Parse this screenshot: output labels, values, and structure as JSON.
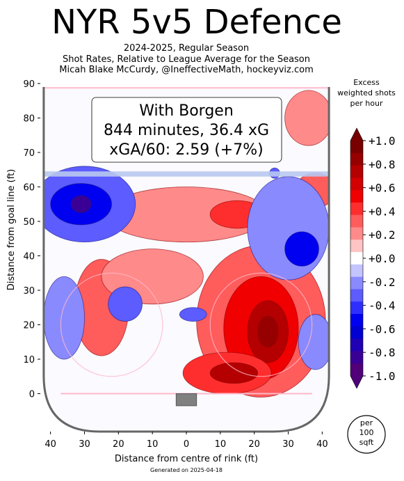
{
  "header": {
    "title": "NYR 5v5 Defence",
    "subtitle_lines": [
      "2024-2025, Regular Season",
      "Shot Rates, Relative to League Average for the Season",
      "Micah Blake McCurdy, @IneffectiveMath, hockeyviz.com"
    ]
  },
  "infobox": {
    "lines": [
      "With Borgen",
      "844 minutes, 36.4 xG",
      "xGA/60: 2.59 (+7%)"
    ]
  },
  "footer": {
    "generated": "Generated on 2025-04-18"
  },
  "scale_badge": {
    "lines": [
      "per",
      "100",
      "sqft"
    ]
  },
  "colors": {
    "red_dark": "#e60000",
    "red_mid": "#ff8f8f",
    "red_light": "#ffc8c8",
    "blue_dark": "#0000e6",
    "blue_mid": "#8f8fff",
    "blue_light": "#c8c8ff",
    "rink_line": "#ffb8c8",
    "blue_line": "#b8c8f0",
    "board": "#666666",
    "net": "#808080"
  },
  "chart_data": {
    "type": "heatmap",
    "xlabel": "Distance from centre of rink (ft)",
    "ylabel": "Distance from goal line (ft)",
    "xlim": [
      -43,
      43
    ],
    "ylim": [
      -11,
      90
    ],
    "x_ticks": [
      -40,
      -30,
      -20,
      -10,
      0,
      10,
      20,
      30,
      40
    ],
    "x_tick_labels": [
      "40",
      "30",
      "20",
      "10",
      "0",
      "10",
      "20",
      "30",
      "40"
    ],
    "y_ticks": [
      0,
      10,
      20,
      30,
      40,
      50,
      60,
      70,
      80,
      90
    ],
    "y_tick_labels": [
      "0",
      "10",
      "20",
      "30",
      "40",
      "50",
      "60",
      "70",
      "80",
      "90"
    ],
    "colorbar": {
      "title_lines": [
        "Excess",
        "weighted shots",
        "per hour"
      ],
      "ticks": [
        1.0,
        0.8,
        0.6,
        0.4,
        0.2,
        0.0,
        -0.2,
        -0.4,
        -0.6,
        -0.8,
        -1.0
      ],
      "tick_labels": [
        "+1.0",
        "+0.8",
        "+0.6",
        "+0.4",
        "+0.2",
        "+0.0",
        "-0.2",
        "-0.4",
        "-0.6",
        "-0.8",
        "-1.0"
      ],
      "levels": [
        0.9,
        0.8,
        0.7,
        0.6,
        0.5,
        0.4,
        0.3,
        0.2,
        0.1,
        -0.1,
        -0.2,
        -0.3,
        -0.4,
        -0.5,
        -0.6,
        -0.7,
        -0.8,
        -0.9
      ],
      "colors": [
        "#780000",
        "#960000",
        "#b40000",
        "#d20000",
        "#f00000",
        "#ff2e2e",
        "#ff5c5c",
        "#ff8a8a",
        "#ffc4c4",
        "#ffffff",
        "#c4c4ff",
        "#8a8aff",
        "#5c5cff",
        "#2e2eff",
        "#0000f0",
        "#0000d2",
        "#2000b4",
        "#3a0096",
        "#500078"
      ]
    },
    "rink": {
      "goal_line_y": 0,
      "blue_line_y": 64,
      "faceoff_circles": [
        {
          "x": -22,
          "y": 20,
          "r": 15
        },
        {
          "x": 22,
          "y": 20,
          "r": 15
        }
      ]
    },
    "regions": [
      {
        "x": 22,
        "y": 21,
        "rx": 19,
        "ry": 22,
        "value": 0.3
      },
      {
        "x": 22,
        "y": 19,
        "rx": 11,
        "ry": 15,
        "value": 0.5
      },
      {
        "x": 24,
        "y": 18,
        "rx": 6,
        "ry": 9,
        "value": 0.7
      },
      {
        "x": 24,
        "y": 18,
        "rx": 3,
        "ry": 4.5,
        "value": 0.8
      },
      {
        "x": 12,
        "y": 6,
        "rx": 13,
        "ry": 6,
        "value": 0.4
      },
      {
        "x": 14,
        "y": 6,
        "rx": 7,
        "ry": 3,
        "value": 0.7
      },
      {
        "x": -25,
        "y": 25,
        "rx": 8,
        "ry": 14,
        "value": 0.3
      },
      {
        "x": -10,
        "y": 34,
        "rx": 15,
        "ry": 8,
        "value": 0.2
      },
      {
        "x": 0,
        "y": 52,
        "rx": 24,
        "ry": 8,
        "value": 0.2
      },
      {
        "x": 15,
        "y": 52,
        "rx": 8,
        "ry": 4,
        "value": 0.4
      },
      {
        "x": 36,
        "y": 80,
        "rx": 7,
        "ry": 8,
        "value": 0.2
      },
      {
        "x": 38,
        "y": 59,
        "rx": 6,
        "ry": 5,
        "value": 0.3
      },
      {
        "x": -30,
        "y": 55,
        "rx": 15,
        "ry": 11,
        "value": -0.3
      },
      {
        "x": -31,
        "y": 55,
        "rx": 9,
        "ry": 6,
        "value": -0.5
      },
      {
        "x": -31,
        "y": 55,
        "rx": 3,
        "ry": 2.5,
        "value": -0.8
      },
      {
        "x": 30,
        "y": 48,
        "rx": 12,
        "ry": 15,
        "value": -0.2
      },
      {
        "x": 34,
        "y": 42,
        "rx": 5,
        "ry": 5,
        "value": -0.5
      },
      {
        "x": -18,
        "y": 26,
        "rx": 5,
        "ry": 5,
        "value": -0.3
      },
      {
        "x": -36,
        "y": 22,
        "rx": 6,
        "ry": 12,
        "value": -0.2
      },
      {
        "x": 38,
        "y": 15,
        "rx": 5,
        "ry": 8,
        "value": -0.2
      },
      {
        "x": 2,
        "y": 23,
        "rx": 4,
        "ry": 2,
        "value": -0.3
      },
      {
        "x": 26,
        "y": 64,
        "rx": 1.5,
        "ry": 1.5,
        "value": -0.3
      }
    ]
  }
}
